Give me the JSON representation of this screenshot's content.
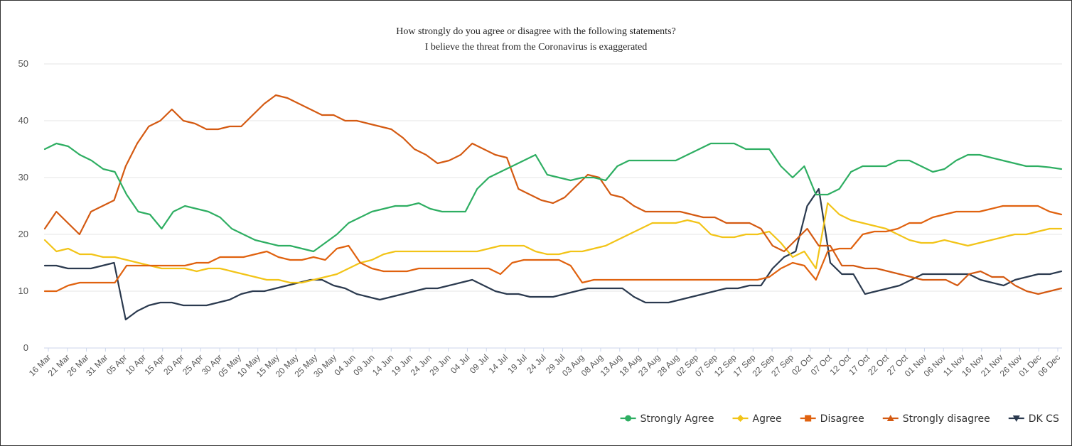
{
  "chart_data": {
    "type": "line",
    "title": "How strongly do you agree or disagree with the following statements?",
    "subtitle": "I believe the threat from the Coronavirus is exaggerated",
    "xlabel": "",
    "ylabel": "",
    "ylim": [
      0,
      50
    ],
    "yticks": [
      0,
      10,
      20,
      30,
      40,
      50
    ],
    "grid": "horizontal",
    "legend_position": "bottom-right",
    "x_tick_labels": [
      "16 Mar",
      "21 Mar",
      "26 Mar",
      "31 Mar",
      "05 Apr",
      "10 Apr",
      "15 Apr",
      "20 Apr",
      "25 Apr",
      "30 Apr",
      "05 May",
      "10 May",
      "15 May",
      "20 May",
      "25 May",
      "30 May",
      "04 Jun",
      "09 Jun",
      "14 Jun",
      "19 Jun",
      "24 Jun",
      "29 Jun",
      "04 Jul",
      "09 Jul",
      "14 Jul",
      "19 Jul",
      "24 Jul",
      "29 Jul",
      "03 Aug",
      "08 Aug",
      "13 Aug",
      "18 Aug",
      "23 Aug",
      "28 Aug",
      "02 Sep",
      "07 Sep",
      "12 Sep",
      "17 Sep",
      "22 Sep",
      "27 Sep",
      "02 Oct",
      "07 Oct",
      "12 Oct",
      "17 Oct",
      "22 Oct",
      "27 Oct",
      "01 Nov",
      "06 Nov",
      "11 Nov",
      "16 Nov",
      "21 Nov",
      "26 Nov",
      "01 Dec",
      "06 Dec"
    ],
    "series": [
      {
        "name": "Strongly Agree",
        "color": "#2eae62",
        "marker": "circle",
        "values": [
          35,
          36,
          35.5,
          34,
          33,
          31.5,
          31,
          27,
          24,
          23.5,
          21,
          24,
          25,
          24.5,
          24,
          23,
          21,
          20,
          19,
          18.5,
          18,
          18,
          17.5,
          17,
          18.5,
          20,
          22,
          23,
          24,
          24.5,
          25,
          25,
          25.5,
          24.5,
          24,
          24,
          24,
          28,
          30,
          31,
          32,
          33,
          34,
          30.5,
          30,
          29.5,
          30,
          30,
          29.5,
          32,
          33,
          33,
          33,
          33,
          33,
          34,
          35,
          36,
          36,
          36,
          35,
          35,
          35,
          32,
          30,
          32,
          27,
          27,
          28,
          31,
          32,
          32,
          32,
          33,
          33,
          32,
          31,
          31.5,
          33,
          34,
          34,
          33.5,
          33,
          32.5,
          32,
          32,
          31.8,
          31.5
        ]
      },
      {
        "name": "Agree",
        "color": "#f2c418",
        "marker": "diamond",
        "values": [
          19,
          17,
          17.5,
          16.5,
          16.5,
          16,
          16,
          15.5,
          15,
          14.5,
          14,
          14,
          14,
          13.5,
          14,
          14,
          13.5,
          13,
          12.5,
          12,
          12,
          11.5,
          11.5,
          12,
          12.5,
          13,
          14,
          15,
          15.5,
          16.5,
          17,
          17,
          17,
          17,
          17,
          17,
          17,
          17,
          17.5,
          18,
          18,
          18,
          17,
          16.5,
          16.5,
          17,
          17,
          17.5,
          18,
          19,
          20,
          21,
          22,
          22,
          22,
          22.5,
          22,
          20,
          19.5,
          19.5,
          20,
          20,
          20.5,
          18.5,
          16,
          17,
          14,
          25.5,
          23.5,
          22.5,
          22,
          21.5,
          21,
          20,
          19,
          18.5,
          18.5,
          19,
          18.5,
          18,
          18.5,
          19,
          19.5,
          20,
          20,
          20.5,
          21,
          21
        ]
      },
      {
        "name": "Disagree",
        "color": "#e0620f",
        "marker": "square",
        "values": [
          10,
          10,
          11,
          11.5,
          11.5,
          11.5,
          11.5,
          14.5,
          14.5,
          14.5,
          14.5,
          14.5,
          14.5,
          15,
          15,
          16,
          16,
          16,
          16.5,
          17,
          16,
          15.5,
          15.5,
          16,
          15.5,
          17.5,
          18,
          15,
          14,
          13.5,
          13.5,
          13.5,
          14,
          14,
          14,
          14,
          14,
          14,
          14,
          13,
          15,
          15.5,
          15.5,
          15.5,
          15.5,
          14.5,
          11.5,
          12,
          12,
          12,
          12,
          12,
          12,
          12,
          12,
          12,
          12,
          12,
          12,
          12,
          12,
          12,
          12.5,
          14,
          15,
          14.5,
          12,
          17,
          17.5,
          17.5,
          20,
          20.5,
          20.5,
          21,
          22,
          22,
          23,
          23.5,
          24,
          24,
          24,
          24.5,
          25,
          25,
          25,
          25,
          24,
          23.5
        ]
      },
      {
        "name": "Strongly disagree",
        "color": "#d45a12",
        "marker": "triangle",
        "values": [
          21,
          24,
          22,
          20,
          24,
          25,
          26,
          32,
          36,
          39,
          40,
          42,
          40,
          39.5,
          38.5,
          38.5,
          39,
          39,
          41,
          43,
          44.5,
          44,
          43,
          42,
          41,
          41,
          40,
          40,
          39.5,
          39,
          38.5,
          37,
          35,
          34,
          32.5,
          33,
          34,
          36,
          35,
          34,
          33.5,
          28,
          27,
          26,
          25.5,
          26.5,
          28.5,
          30.5,
          30,
          27,
          26.5,
          25,
          24,
          24,
          24,
          24,
          23.5,
          23,
          23,
          22,
          22,
          22,
          21,
          18,
          17,
          19,
          21,
          18,
          18,
          14.5,
          14.5,
          14,
          14,
          13.5,
          13,
          12.5,
          12,
          12,
          12,
          11,
          13,
          13.5,
          12.5,
          12.5,
          11,
          10,
          9.5,
          10,
          10.5
        ]
      },
      {
        "name": "DK CS",
        "color": "#2b3a4f",
        "marker": "triangle-down",
        "values": [
          14.5,
          14.5,
          14,
          14,
          14,
          14.5,
          15,
          5,
          6.5,
          7.5,
          8,
          8,
          7.5,
          7.5,
          7.5,
          8,
          8.5,
          9.5,
          10,
          10,
          10.5,
          11,
          11.5,
          12,
          12,
          11,
          10.5,
          9.5,
          9,
          8.5,
          9,
          9.5,
          10,
          10.5,
          10.5,
          11,
          11.5,
          12,
          11,
          10,
          9.5,
          9.5,
          9,
          9,
          9,
          9.5,
          10,
          10.5,
          10.5,
          10.5,
          10.5,
          9,
          8,
          8,
          8,
          8.5,
          9,
          9.5,
          10,
          10.5,
          10.5,
          11,
          11,
          14,
          16,
          17,
          25,
          28,
          15,
          13,
          13,
          9.5,
          10,
          10.5,
          11,
          12,
          13,
          13,
          13,
          13,
          13,
          12,
          11.5,
          11,
          12,
          12.5,
          13,
          13,
          13.5
        ]
      }
    ]
  }
}
